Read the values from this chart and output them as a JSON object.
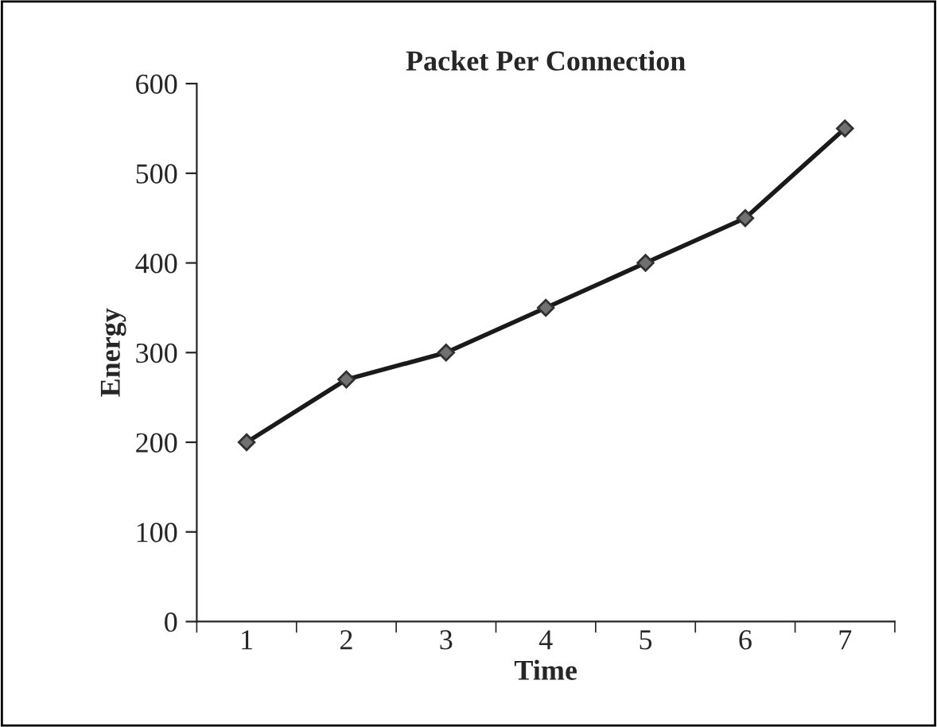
{
  "chart_data": {
    "type": "line",
    "title": "Packet Per Connection",
    "xlabel": "Time",
    "ylabel": "Energy",
    "categories": [
      "1",
      "2",
      "3",
      "4",
      "5",
      "6",
      "7"
    ],
    "series": [
      {
        "color": "#1a1a1a",
        "values": [
          200,
          270,
          300,
          350,
          400,
          450,
          550
        ]
      }
    ],
    "ylim": [
      0,
      600
    ],
    "yticks": [
      0,
      100,
      200,
      300,
      400,
      500,
      600
    ],
    "grid": false,
    "legend": false,
    "marker": "diamond",
    "line_style": "solid"
  }
}
